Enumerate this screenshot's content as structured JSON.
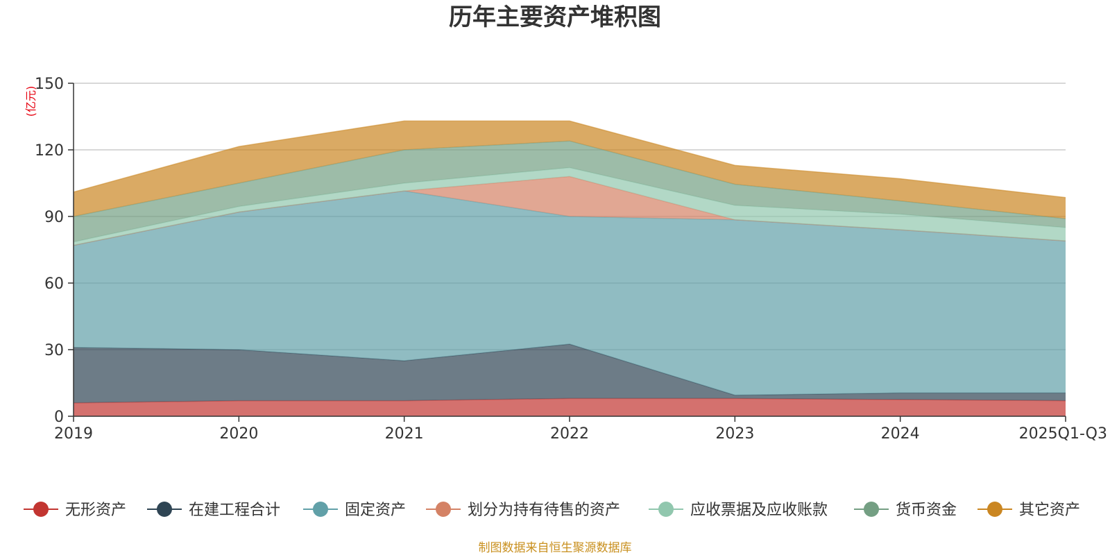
{
  "chart_data": {
    "type": "area",
    "stacked": true,
    "title": "历年主要资产堆积图",
    "unit_label": "(亿元)",
    "source": "制图数据来自恒生聚源数据库",
    "categories": [
      "2019",
      "2020",
      "2021",
      "2022",
      "2023",
      "2024",
      "2025Q1-Q3"
    ],
    "y_ticks": [
      "0",
      "30",
      "60",
      "90",
      "120",
      "150"
    ],
    "ylim": [
      0,
      150
    ],
    "grid": true,
    "legend_position": "bottom",
    "series": [
      {
        "name": "无形资产",
        "color": "#c23531",
        "values": [
          6.0,
          7.0,
          7.0,
          8.0,
          8.0,
          7.5,
          7.0
        ]
      },
      {
        "name": "在建工程合计",
        "color": "#2f4554",
        "values": [
          25.0,
          23.0,
          18.0,
          24.5,
          1.5,
          3.0,
          3.5
        ]
      },
      {
        "name": "固定资产",
        "color": "#61a0a8",
        "values": [
          46.0,
          62.0,
          76.5,
          57.5,
          79.0,
          73.5,
          68.5
        ]
      },
      {
        "name": "划分为持有待售的资产",
        "color": "#d48265",
        "values": [
          0,
          0,
          0,
          18.0,
          0,
          0,
          0
        ]
      },
      {
        "name": "应收票据及应收账款",
        "color": "#91c7ae",
        "values": [
          1.5,
          2.5,
          3.5,
          4.0,
          6.5,
          7.0,
          6.0
        ]
      },
      {
        "name": "货币资金",
        "color": "#749f83",
        "values": [
          11.5,
          10.5,
          15.0,
          12.0,
          9.5,
          6.0,
          4.0
        ]
      },
      {
        "name": "其它资产",
        "color": "#ca8622",
        "values": [
          11.0,
          16.5,
          13.0,
          9.0,
          8.5,
          10.0,
          9.5
        ]
      }
    ]
  }
}
